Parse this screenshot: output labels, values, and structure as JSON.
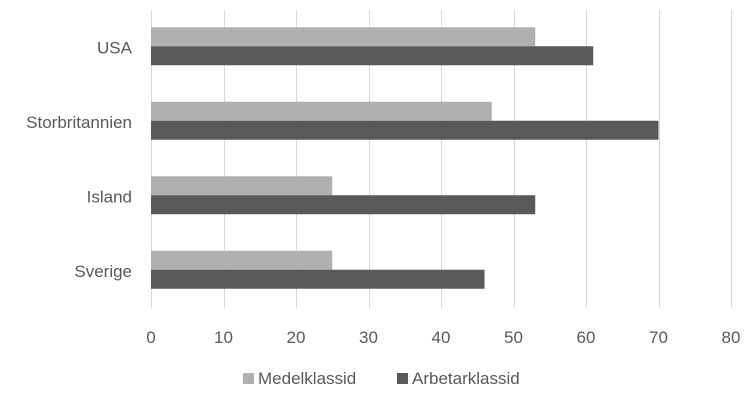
{
  "chart_data": {
    "type": "bar",
    "orientation": "horizontal",
    "categories": [
      "USA",
      "Storbritannien",
      "Island",
      "Sverige"
    ],
    "series": [
      {
        "name": "Medelklassid",
        "color": "#b0b0b0",
        "values": [
          53,
          47,
          25,
          25
        ]
      },
      {
        "name": "Arbetarklassid",
        "color": "#595959",
        "values": [
          61,
          70,
          53,
          46
        ]
      }
    ],
    "x_ticks": [
      "0",
      "10",
      "20",
      "30",
      "40",
      "50",
      "60",
      "70",
      "80"
    ],
    "xlim": [
      0,
      80
    ],
    "grid": true,
    "legend_position": "bottom",
    "title": "",
    "xlabel": "",
    "ylabel": ""
  }
}
